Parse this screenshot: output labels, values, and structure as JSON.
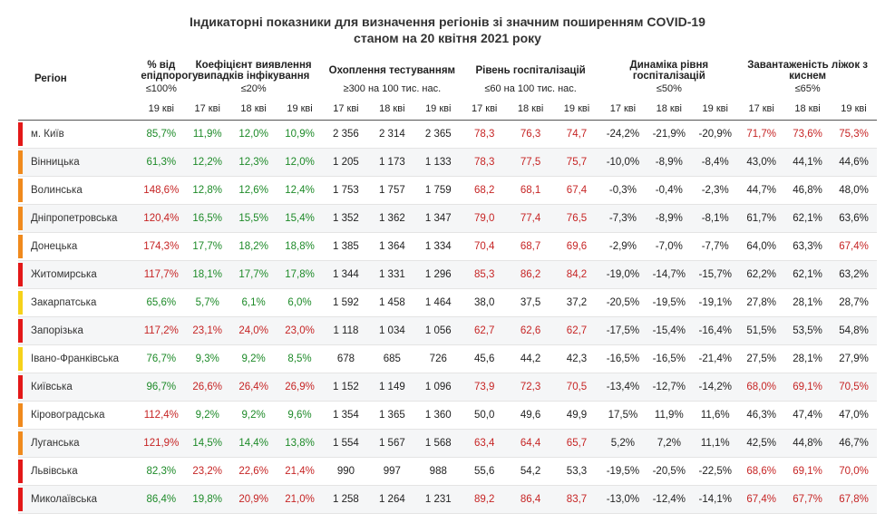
{
  "title": "Індикаторні показники для визначення регіонів зі значним поширенням COVID-19",
  "subtitle": "станом на 20 квітня 2021 року",
  "colors": {
    "red": "#e31818",
    "orange": "#f08a1d",
    "yellow": "#f6d21a",
    "green_text": "#1d8a28",
    "red_text": "#c62424",
    "row_alt": "#f5f6f7",
    "border": "#e4e4e4"
  },
  "headers": {
    "region": "Регіон",
    "groups": [
      {
        "title": "% від епідпорогу",
        "threshold": "≤100%",
        "dates": [
          "19 кві"
        ]
      },
      {
        "title": "Коефіцієнт виявлення випадків інфікування",
        "threshold": "≤20%",
        "dates": [
          "17 кві",
          "18 кві",
          "19 кві"
        ]
      },
      {
        "title": "Охоплення тестуванням",
        "threshold": "≥300 на 100 тис. нас.",
        "dates": [
          "17 кві",
          "18 кві",
          "19 кві"
        ]
      },
      {
        "title": "Рівень госпіталізацій",
        "threshold": "≤60 на 100 тис. нас.",
        "dates": [
          "17 кві",
          "18 кві",
          "19 кві"
        ]
      },
      {
        "title": "Динаміка рівня госпіталізацій",
        "threshold": "≤50%",
        "dates": [
          "17 кві",
          "18 кві",
          "19 кві"
        ]
      },
      {
        "title": "Завантаженість ліжок з киснем",
        "threshold": "≤65%",
        "dates": [
          "17 кві",
          "18 кві",
          "19 кві"
        ]
      }
    ]
  },
  "rows": [
    {
      "marker": "red",
      "region": "м. Київ",
      "epi": [
        {
          "v": "85,7%",
          "c": "green"
        }
      ],
      "det": [
        {
          "v": "11,9%",
          "c": "green"
        },
        {
          "v": "12,0%",
          "c": "green"
        },
        {
          "v": "10,9%",
          "c": "green"
        }
      ],
      "test": [
        {
          "v": "2 356",
          "c": "black"
        },
        {
          "v": "2 314",
          "c": "black"
        },
        {
          "v": "2 365",
          "c": "black"
        }
      ],
      "hosp": [
        {
          "v": "78,3",
          "c": "red"
        },
        {
          "v": "76,3",
          "c": "red"
        },
        {
          "v": "74,7",
          "c": "red"
        }
      ],
      "dyn": [
        {
          "v": "-24,2%",
          "c": "black"
        },
        {
          "v": "-21,9%",
          "c": "black"
        },
        {
          "v": "-20,9%",
          "c": "black"
        }
      ],
      "oxy": [
        {
          "v": "71,7%",
          "c": "red"
        },
        {
          "v": "73,6%",
          "c": "red"
        },
        {
          "v": "75,3%",
          "c": "red"
        }
      ]
    },
    {
      "marker": "orange",
      "region": "Вінницька",
      "epi": [
        {
          "v": "61,3%",
          "c": "green"
        }
      ],
      "det": [
        {
          "v": "12,2%",
          "c": "green"
        },
        {
          "v": "12,3%",
          "c": "green"
        },
        {
          "v": "12,0%",
          "c": "green"
        }
      ],
      "test": [
        {
          "v": "1 205",
          "c": "black"
        },
        {
          "v": "1 173",
          "c": "black"
        },
        {
          "v": "1 133",
          "c": "black"
        }
      ],
      "hosp": [
        {
          "v": "78,3",
          "c": "red"
        },
        {
          "v": "77,5",
          "c": "red"
        },
        {
          "v": "75,7",
          "c": "red"
        }
      ],
      "dyn": [
        {
          "v": "-10,0%",
          "c": "black"
        },
        {
          "v": "-8,9%",
          "c": "black"
        },
        {
          "v": "-8,4%",
          "c": "black"
        }
      ],
      "oxy": [
        {
          "v": "43,0%",
          "c": "black"
        },
        {
          "v": "44,1%",
          "c": "black"
        },
        {
          "v": "44,6%",
          "c": "black"
        }
      ]
    },
    {
      "marker": "orange",
      "region": "Волинська",
      "epi": [
        {
          "v": "148,6%",
          "c": "red"
        }
      ],
      "det": [
        {
          "v": "12,8%",
          "c": "green"
        },
        {
          "v": "12,6%",
          "c": "green"
        },
        {
          "v": "12,4%",
          "c": "green"
        }
      ],
      "test": [
        {
          "v": "1 753",
          "c": "black"
        },
        {
          "v": "1 757",
          "c": "black"
        },
        {
          "v": "1 759",
          "c": "black"
        }
      ],
      "hosp": [
        {
          "v": "68,2",
          "c": "red"
        },
        {
          "v": "68,1",
          "c": "red"
        },
        {
          "v": "67,4",
          "c": "red"
        }
      ],
      "dyn": [
        {
          "v": "-0,3%",
          "c": "black"
        },
        {
          "v": "-0,4%",
          "c": "black"
        },
        {
          "v": "-2,3%",
          "c": "black"
        }
      ],
      "oxy": [
        {
          "v": "44,7%",
          "c": "black"
        },
        {
          "v": "46,8%",
          "c": "black"
        },
        {
          "v": "48,0%",
          "c": "black"
        }
      ]
    },
    {
      "marker": "orange",
      "region": "Дніпропетровська",
      "epi": [
        {
          "v": "120,4%",
          "c": "red"
        }
      ],
      "det": [
        {
          "v": "16,5%",
          "c": "green"
        },
        {
          "v": "15,5%",
          "c": "green"
        },
        {
          "v": "15,4%",
          "c": "green"
        }
      ],
      "test": [
        {
          "v": "1 352",
          "c": "black"
        },
        {
          "v": "1 362",
          "c": "black"
        },
        {
          "v": "1 347",
          "c": "black"
        }
      ],
      "hosp": [
        {
          "v": "79,0",
          "c": "red"
        },
        {
          "v": "77,4",
          "c": "red"
        },
        {
          "v": "76,5",
          "c": "red"
        }
      ],
      "dyn": [
        {
          "v": "-7,3%",
          "c": "black"
        },
        {
          "v": "-8,9%",
          "c": "black"
        },
        {
          "v": "-8,1%",
          "c": "black"
        }
      ],
      "oxy": [
        {
          "v": "61,7%",
          "c": "black"
        },
        {
          "v": "62,1%",
          "c": "black"
        },
        {
          "v": "63,6%",
          "c": "black"
        }
      ]
    },
    {
      "marker": "orange",
      "region": "Донецька",
      "epi": [
        {
          "v": "174,3%",
          "c": "red"
        }
      ],
      "det": [
        {
          "v": "17,7%",
          "c": "green"
        },
        {
          "v": "18,2%",
          "c": "green"
        },
        {
          "v": "18,8%",
          "c": "green"
        }
      ],
      "test": [
        {
          "v": "1 385",
          "c": "black"
        },
        {
          "v": "1 364",
          "c": "black"
        },
        {
          "v": "1 334",
          "c": "black"
        }
      ],
      "hosp": [
        {
          "v": "70,4",
          "c": "red"
        },
        {
          "v": "68,7",
          "c": "red"
        },
        {
          "v": "69,6",
          "c": "red"
        }
      ],
      "dyn": [
        {
          "v": "-2,9%",
          "c": "black"
        },
        {
          "v": "-7,0%",
          "c": "black"
        },
        {
          "v": "-7,7%",
          "c": "black"
        }
      ],
      "oxy": [
        {
          "v": "64,0%",
          "c": "black"
        },
        {
          "v": "63,3%",
          "c": "black"
        },
        {
          "v": "67,4%",
          "c": "red"
        }
      ]
    },
    {
      "marker": "red",
      "region": "Житомирська",
      "epi": [
        {
          "v": "117,7%",
          "c": "red"
        }
      ],
      "det": [
        {
          "v": "18,1%",
          "c": "green"
        },
        {
          "v": "17,7%",
          "c": "green"
        },
        {
          "v": "17,8%",
          "c": "green"
        }
      ],
      "test": [
        {
          "v": "1 344",
          "c": "black"
        },
        {
          "v": "1 331",
          "c": "black"
        },
        {
          "v": "1 296",
          "c": "black"
        }
      ],
      "hosp": [
        {
          "v": "85,3",
          "c": "red"
        },
        {
          "v": "86,2",
          "c": "red"
        },
        {
          "v": "84,2",
          "c": "red"
        }
      ],
      "dyn": [
        {
          "v": "-19,0%",
          "c": "black"
        },
        {
          "v": "-14,7%",
          "c": "black"
        },
        {
          "v": "-15,7%",
          "c": "black"
        }
      ],
      "oxy": [
        {
          "v": "62,2%",
          "c": "black"
        },
        {
          "v": "62,1%",
          "c": "black"
        },
        {
          "v": "63,2%",
          "c": "black"
        }
      ]
    },
    {
      "marker": "yellow",
      "region": "Закарпатська",
      "epi": [
        {
          "v": "65,6%",
          "c": "green"
        }
      ],
      "det": [
        {
          "v": "5,7%",
          "c": "green"
        },
        {
          "v": "6,1%",
          "c": "green"
        },
        {
          "v": "6,0%",
          "c": "green"
        }
      ],
      "test": [
        {
          "v": "1 592",
          "c": "black"
        },
        {
          "v": "1 458",
          "c": "black"
        },
        {
          "v": "1 464",
          "c": "black"
        }
      ],
      "hosp": [
        {
          "v": "38,0",
          "c": "black"
        },
        {
          "v": "37,5",
          "c": "black"
        },
        {
          "v": "37,2",
          "c": "black"
        }
      ],
      "dyn": [
        {
          "v": "-20,5%",
          "c": "black"
        },
        {
          "v": "-19,5%",
          "c": "black"
        },
        {
          "v": "-19,1%",
          "c": "black"
        }
      ],
      "oxy": [
        {
          "v": "27,8%",
          "c": "black"
        },
        {
          "v": "28,1%",
          "c": "black"
        },
        {
          "v": "28,7%",
          "c": "black"
        }
      ]
    },
    {
      "marker": "red",
      "region": "Запорізька",
      "epi": [
        {
          "v": "117,2%",
          "c": "red"
        }
      ],
      "det": [
        {
          "v": "23,1%",
          "c": "red"
        },
        {
          "v": "24,0%",
          "c": "red"
        },
        {
          "v": "23,0%",
          "c": "red"
        }
      ],
      "test": [
        {
          "v": "1 118",
          "c": "black"
        },
        {
          "v": "1 034",
          "c": "black"
        },
        {
          "v": "1 056",
          "c": "black"
        }
      ],
      "hosp": [
        {
          "v": "62,7",
          "c": "red"
        },
        {
          "v": "62,6",
          "c": "red"
        },
        {
          "v": "62,7",
          "c": "red"
        }
      ],
      "dyn": [
        {
          "v": "-17,5%",
          "c": "black"
        },
        {
          "v": "-15,4%",
          "c": "black"
        },
        {
          "v": "-16,4%",
          "c": "black"
        }
      ],
      "oxy": [
        {
          "v": "51,5%",
          "c": "black"
        },
        {
          "v": "53,5%",
          "c": "black"
        },
        {
          "v": "54,8%",
          "c": "black"
        }
      ]
    },
    {
      "marker": "yellow",
      "region": "Івано-Франківська",
      "epi": [
        {
          "v": "76,7%",
          "c": "green"
        }
      ],
      "det": [
        {
          "v": "9,3%",
          "c": "green"
        },
        {
          "v": "9,2%",
          "c": "green"
        },
        {
          "v": "8,5%",
          "c": "green"
        }
      ],
      "test": [
        {
          "v": "678",
          "c": "black"
        },
        {
          "v": "685",
          "c": "black"
        },
        {
          "v": "726",
          "c": "black"
        }
      ],
      "hosp": [
        {
          "v": "45,6",
          "c": "black"
        },
        {
          "v": "44,2",
          "c": "black"
        },
        {
          "v": "42,3",
          "c": "black"
        }
      ],
      "dyn": [
        {
          "v": "-16,5%",
          "c": "black"
        },
        {
          "v": "-16,5%",
          "c": "black"
        },
        {
          "v": "-21,4%",
          "c": "black"
        }
      ],
      "oxy": [
        {
          "v": "27,5%",
          "c": "black"
        },
        {
          "v": "28,1%",
          "c": "black"
        },
        {
          "v": "27,9%",
          "c": "black"
        }
      ]
    },
    {
      "marker": "red",
      "region": "Київська",
      "epi": [
        {
          "v": "96,7%",
          "c": "green"
        }
      ],
      "det": [
        {
          "v": "26,6%",
          "c": "red"
        },
        {
          "v": "26,4%",
          "c": "red"
        },
        {
          "v": "26,9%",
          "c": "red"
        }
      ],
      "test": [
        {
          "v": "1 152",
          "c": "black"
        },
        {
          "v": "1 149",
          "c": "black"
        },
        {
          "v": "1 096",
          "c": "black"
        }
      ],
      "hosp": [
        {
          "v": "73,9",
          "c": "red"
        },
        {
          "v": "72,3",
          "c": "red"
        },
        {
          "v": "70,5",
          "c": "red"
        }
      ],
      "dyn": [
        {
          "v": "-13,4%",
          "c": "black"
        },
        {
          "v": "-12,7%",
          "c": "black"
        },
        {
          "v": "-14,2%",
          "c": "black"
        }
      ],
      "oxy": [
        {
          "v": "68,0%",
          "c": "red"
        },
        {
          "v": "69,1%",
          "c": "red"
        },
        {
          "v": "70,5%",
          "c": "red"
        }
      ]
    },
    {
      "marker": "orange",
      "region": "Кіровоградська",
      "epi": [
        {
          "v": "112,4%",
          "c": "red"
        }
      ],
      "det": [
        {
          "v": "9,2%",
          "c": "green"
        },
        {
          "v": "9,2%",
          "c": "green"
        },
        {
          "v": "9,6%",
          "c": "green"
        }
      ],
      "test": [
        {
          "v": "1 354",
          "c": "black"
        },
        {
          "v": "1 365",
          "c": "black"
        },
        {
          "v": "1 360",
          "c": "black"
        }
      ],
      "hosp": [
        {
          "v": "50,0",
          "c": "black"
        },
        {
          "v": "49,6",
          "c": "black"
        },
        {
          "v": "49,9",
          "c": "black"
        }
      ],
      "dyn": [
        {
          "v": "17,5%",
          "c": "black"
        },
        {
          "v": "11,9%",
          "c": "black"
        },
        {
          "v": "11,6%",
          "c": "black"
        }
      ],
      "oxy": [
        {
          "v": "46,3%",
          "c": "black"
        },
        {
          "v": "47,4%",
          "c": "black"
        },
        {
          "v": "47,0%",
          "c": "black"
        }
      ]
    },
    {
      "marker": "orange",
      "region": "Луганська",
      "epi": [
        {
          "v": "121,9%",
          "c": "red"
        }
      ],
      "det": [
        {
          "v": "14,5%",
          "c": "green"
        },
        {
          "v": "14,4%",
          "c": "green"
        },
        {
          "v": "13,8%",
          "c": "green"
        }
      ],
      "test": [
        {
          "v": "1 554",
          "c": "black"
        },
        {
          "v": "1 567",
          "c": "black"
        },
        {
          "v": "1 568",
          "c": "black"
        }
      ],
      "hosp": [
        {
          "v": "63,4",
          "c": "red"
        },
        {
          "v": "64,4",
          "c": "red"
        },
        {
          "v": "65,7",
          "c": "red"
        }
      ],
      "dyn": [
        {
          "v": "5,2%",
          "c": "black"
        },
        {
          "v": "7,2%",
          "c": "black"
        },
        {
          "v": "11,1%",
          "c": "black"
        }
      ],
      "oxy": [
        {
          "v": "42,5%",
          "c": "black"
        },
        {
          "v": "44,8%",
          "c": "black"
        },
        {
          "v": "46,7%",
          "c": "black"
        }
      ]
    },
    {
      "marker": "red",
      "region": "Львівська",
      "epi": [
        {
          "v": "82,3%",
          "c": "green"
        }
      ],
      "det": [
        {
          "v": "23,2%",
          "c": "red"
        },
        {
          "v": "22,6%",
          "c": "red"
        },
        {
          "v": "21,4%",
          "c": "red"
        }
      ],
      "test": [
        {
          "v": "990",
          "c": "black"
        },
        {
          "v": "997",
          "c": "black"
        },
        {
          "v": "988",
          "c": "black"
        }
      ],
      "hosp": [
        {
          "v": "55,6",
          "c": "black"
        },
        {
          "v": "54,2",
          "c": "black"
        },
        {
          "v": "53,3",
          "c": "black"
        }
      ],
      "dyn": [
        {
          "v": "-19,5%",
          "c": "black"
        },
        {
          "v": "-20,5%",
          "c": "black"
        },
        {
          "v": "-22,5%",
          "c": "black"
        }
      ],
      "oxy": [
        {
          "v": "68,6%",
          "c": "red"
        },
        {
          "v": "69,1%",
          "c": "red"
        },
        {
          "v": "70,0%",
          "c": "red"
        }
      ]
    },
    {
      "marker": "red",
      "region": "Миколаївська",
      "epi": [
        {
          "v": "86,4%",
          "c": "green"
        }
      ],
      "det": [
        {
          "v": "19,8%",
          "c": "green"
        },
        {
          "v": "20,9%",
          "c": "red"
        },
        {
          "v": "21,0%",
          "c": "red"
        }
      ],
      "test": [
        {
          "v": "1 258",
          "c": "black"
        },
        {
          "v": "1 264",
          "c": "black"
        },
        {
          "v": "1 231",
          "c": "black"
        }
      ],
      "hosp": [
        {
          "v": "89,2",
          "c": "red"
        },
        {
          "v": "86,4",
          "c": "red"
        },
        {
          "v": "83,7",
          "c": "red"
        }
      ],
      "dyn": [
        {
          "v": "-13,0%",
          "c": "black"
        },
        {
          "v": "-12,4%",
          "c": "black"
        },
        {
          "v": "-14,1%",
          "c": "black"
        }
      ],
      "oxy": [
        {
          "v": "67,4%",
          "c": "red"
        },
        {
          "v": "67,7%",
          "c": "red"
        },
        {
          "v": "67,8%",
          "c": "red"
        }
      ]
    }
  ]
}
